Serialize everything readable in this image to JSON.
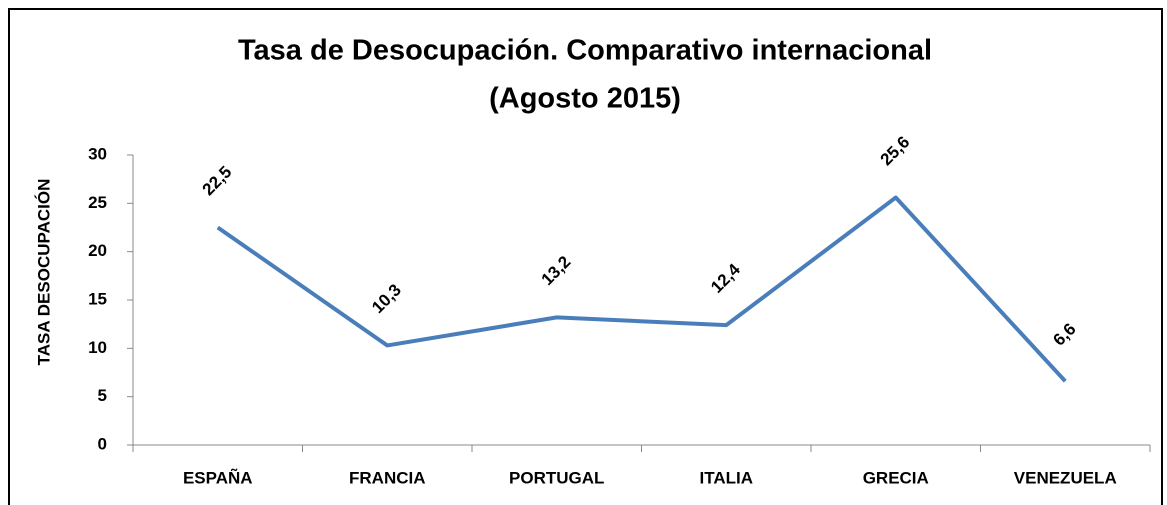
{
  "chart_data": {
    "type": "line",
    "title": "Tasa de Desocupación. Comparativo internacional",
    "subtitle": "(Agosto 2015)",
    "y_axis_label": "TASA DESOCUPACIÓN",
    "categories": [
      "ESPAÑA",
      "FRANCIA",
      "PORTUGAL",
      "ITALIA",
      "GRECIA",
      "VENEZUELA"
    ],
    "values": [
      22.5,
      10.3,
      13.2,
      12.4,
      25.6,
      6.6
    ],
    "value_labels": [
      "22,5",
      "10,3",
      "13,2",
      "12,4",
      "25,6",
      "6,6"
    ],
    "color": "#4a7ebb",
    "ylim": [
      0,
      30
    ],
    "yticks": [
      0,
      5,
      10,
      15,
      20,
      25,
      30
    ],
    "grid": false
  }
}
